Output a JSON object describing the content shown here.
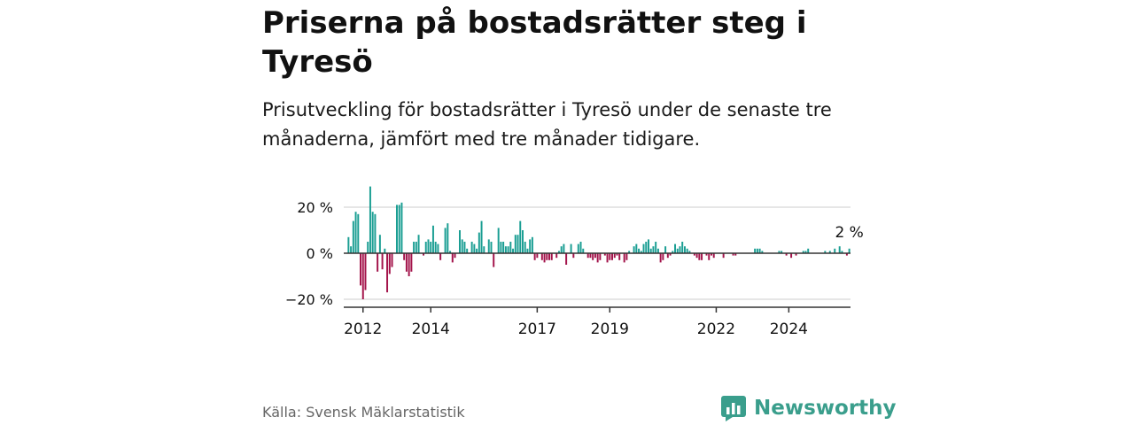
{
  "header": {
    "title": "Priserna på bostadsrätter steg i Tyresö",
    "subtitle": "Prisutveckling för bostadsrätter i Tyresö under de senaste tre månaderna, jämfört med tre månader tidigare."
  },
  "footer": {
    "source": "Källa: Svensk Mäklarstatistik",
    "brand": "Newsworthy",
    "brand_icon": "bar-chart-logo-icon"
  },
  "colors": {
    "positive": "#1a9e93",
    "negative": "#a3134a",
    "brand": "#3a9e8c",
    "axis": "#333333",
    "grid": "#cccccc"
  },
  "chart_data": {
    "type": "bar",
    "title": "Priserna på bostadsrätter steg i Tyresö",
    "xlabel": "",
    "ylabel": "",
    "ylim": [
      -24,
      30
    ],
    "yticks": [
      20,
      0,
      -20
    ],
    "ytick_labels": [
      "20 %",
      "0 %",
      "−20 %"
    ],
    "x_tick_labels": [
      "2012",
      "2014",
      "2017",
      "2019",
      "2022",
      "2024"
    ],
    "x_tick_index": [
      6,
      34,
      78,
      108,
      152,
      182
    ],
    "last_value_label": "2 %",
    "x_start": "2011-12",
    "frequency": "monthly",
    "values": [
      7,
      3,
      14,
      18,
      17,
      -14,
      -20,
      -16,
      5,
      29,
      18,
      17,
      -8,
      8,
      -7,
      2,
      -17,
      -9,
      -6,
      0,
      21,
      21,
      22,
      -3,
      -8,
      -10,
      -8,
      5,
      5,
      8,
      0,
      -1,
      5,
      6,
      5,
      12,
      5,
      4,
      -3,
      0,
      11,
      13,
      1,
      -4,
      -2,
      0,
      10,
      6,
      5,
      2,
      0,
      5,
      4,
      2,
      9,
      14,
      3,
      0,
      6,
      5,
      -6,
      0,
      11,
      5,
      5,
      3,
      3,
      5,
      2,
      8,
      8,
      14,
      10,
      5,
      2,
      6,
      7,
      -3,
      -2,
      0,
      -3,
      -4,
      -3,
      -3,
      -3,
      0,
      -2,
      1,
      3,
      4,
      -5,
      0,
      4,
      -2,
      0,
      4,
      5,
      2,
      0,
      -2,
      -2,
      -3,
      -2,
      -4,
      -3,
      0,
      -1,
      -4,
      -3,
      -3,
      -2,
      -1,
      -3,
      0,
      -4,
      -3,
      1,
      0,
      3,
      4,
      2,
      1,
      4,
      5,
      6,
      2,
      3,
      5,
      2,
      -4,
      -3,
      3,
      -2,
      -1,
      1,
      4,
      2,
      3,
      5,
      3,
      2,
      1,
      0,
      -1,
      -2,
      -3,
      -3,
      0,
      -1,
      -3,
      -1,
      -2,
      0,
      0,
      0,
      -2,
      0,
      0,
      0,
      -1,
      -1,
      0,
      0,
      0,
      0,
      0,
      0,
      0,
      2,
      2,
      2,
      1,
      0,
      0,
      0,
      0,
      0,
      0,
      1,
      1,
      0,
      -1,
      0,
      -2,
      0,
      -1,
      0,
      0,
      1,
      1,
      2,
      0,
      0,
      0,
      0,
      0,
      0,
      1,
      0,
      1,
      0,
      2,
      0,
      3,
      1,
      0,
      -1,
      2
    ]
  }
}
